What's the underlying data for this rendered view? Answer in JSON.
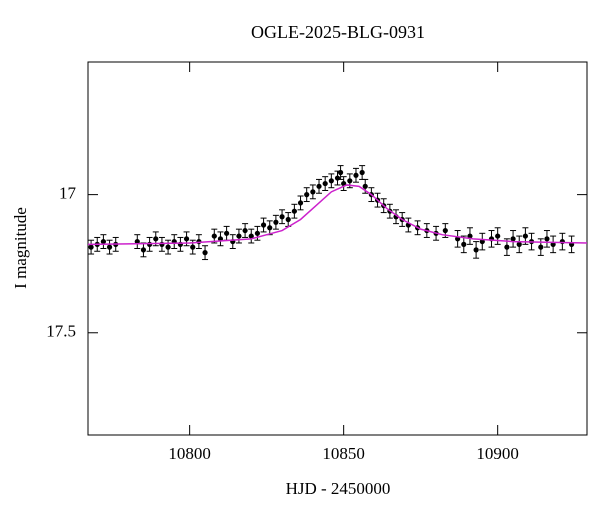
{
  "chart_data": {
    "type": "scatter",
    "title": "OGLE-2025-BLG-0931",
    "xlabel": "HJD - 2450000",
    "ylabel": "I magnitude",
    "xlim": [
      10767,
      10929
    ],
    "xticks": [
      10800,
      10850,
      10900
    ],
    "ylim": [
      17.87,
      16.52
    ],
    "yticks": [
      17,
      17.5
    ],
    "color": "#000000",
    "x": [
      10768,
      10770,
      10772,
      10774,
      10776,
      10783,
      10785,
      10787,
      10789,
      10791,
      10793,
      10795,
      10797,
      10799,
      10801,
      10803,
      10805,
      10808,
      10810,
      10812,
      10814,
      10816,
      10818,
      10820,
      10822,
      10824,
      10826,
      10828,
      10830,
      10832,
      10834,
      10836,
      10838,
      10840,
      10842,
      10844,
      10846,
      10848,
      10849,
      10850,
      10852,
      10854,
      10856,
      10857,
      10859,
      10861,
      10863,
      10865,
      10867,
      10869,
      10871,
      10874,
      10877,
      10880,
      10883,
      10887,
      10889,
      10891,
      10893,
      10895,
      10898,
      10900,
      10903,
      10905,
      10907,
      10909,
      10911,
      10914,
      10916,
      10918,
      10921,
      10924
    ],
    "values": [
      17.19,
      17.18,
      17.17,
      17.19,
      17.18,
      17.17,
      17.2,
      17.18,
      17.16,
      17.18,
      17.19,
      17.17,
      17.18,
      17.16,
      17.19,
      17.17,
      17.21,
      17.15,
      17.16,
      17.14,
      17.17,
      17.15,
      17.13,
      17.15,
      17.14,
      17.11,
      17.12,
      17.1,
      17.08,
      17.09,
      17.06,
      17.03,
      17.0,
      16.99,
      16.97,
      16.96,
      16.95,
      16.94,
      16.92,
      16.96,
      16.95,
      16.93,
      16.92,
      16.97,
      17.0,
      17.02,
      17.04,
      17.06,
      17.08,
      17.09,
      17.11,
      17.12,
      17.13,
      17.14,
      17.13,
      17.16,
      17.18,
      17.15,
      17.2,
      17.17,
      17.16,
      17.15,
      17.19,
      17.16,
      17.18,
      17.15,
      17.17,
      17.19,
      17.16,
      17.18,
      17.17,
      17.18
    ],
    "errors": [
      0.025,
      0.025,
      0.025,
      0.025,
      0.025,
      0.025,
      0.025,
      0.025,
      0.025,
      0.025,
      0.025,
      0.025,
      0.025,
      0.025,
      0.025,
      0.025,
      0.025,
      0.025,
      0.025,
      0.025,
      0.025,
      0.025,
      0.025,
      0.025,
      0.025,
      0.025,
      0.025,
      0.025,
      0.025,
      0.025,
      0.025,
      0.025,
      0.025,
      0.025,
      0.025,
      0.025,
      0.025,
      0.025,
      0.025,
      0.025,
      0.025,
      0.025,
      0.025,
      0.025,
      0.025,
      0.025,
      0.025,
      0.025,
      0.025,
      0.025,
      0.025,
      0.025,
      0.025,
      0.025,
      0.025,
      0.03,
      0.03,
      0.03,
      0.03,
      0.03,
      0.03,
      0.03,
      0.03,
      0.03,
      0.03,
      0.03,
      0.03,
      0.03,
      0.03,
      0.03,
      0.03,
      0.03
    ],
    "model": {
      "color": "#cc22cc",
      "x": [
        10767,
        10800,
        10820,
        10830,
        10836,
        10841,
        10846,
        10851,
        10855,
        10859,
        10864,
        10869,
        10875,
        10882,
        10892,
        10905,
        10929
      ],
      "values": [
        17.18,
        17.175,
        17.16,
        17.13,
        17.09,
        17.04,
        16.99,
        16.965,
        16.97,
        17.0,
        17.05,
        17.09,
        17.125,
        17.145,
        17.16,
        17.17,
        17.175
      ]
    }
  }
}
